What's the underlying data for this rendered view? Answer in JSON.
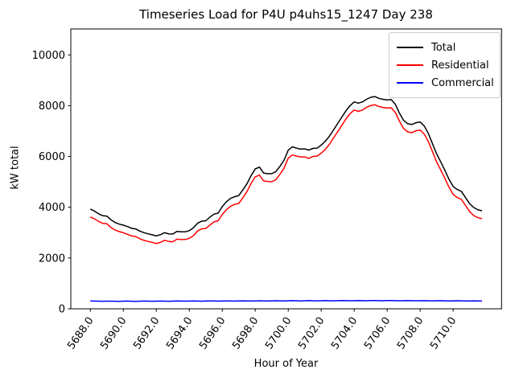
{
  "chart_data": {
    "type": "line",
    "title": "Timeseries Load for P4U p4uhs15_1247  Day 238",
    "xlabel": "Hour of Year",
    "ylabel": "kW total",
    "xlim": [
      5686.8125,
      5712.9375
    ],
    "ylim": [
      0,
      11023
    ],
    "grid": false,
    "legend_position": "upper right",
    "xticks": {
      "values": [
        5688,
        5690,
        5692,
        5694,
        5696,
        5698,
        5700,
        5702,
        5704,
        5706,
        5708,
        5710
      ],
      "labels": [
        "5688.0",
        "5690.0",
        "5692.0",
        "5694.0",
        "5696.0",
        "5698.0",
        "5700.0",
        "5702.0",
        "5704.0",
        "5706.0",
        "5708.0",
        "5710.0"
      ],
      "rotation_deg": 55
    },
    "yticks": {
      "values": [
        0,
        2000,
        4000,
        6000,
        8000,
        10000
      ],
      "labels": [
        "0",
        "2000",
        "4000",
        "6000",
        "8000",
        "10000"
      ]
    },
    "x": [
      5688.0,
      5688.25,
      5688.5,
      5688.75,
      5689.0,
      5689.25,
      5689.5,
      5689.75,
      5690.0,
      5690.25,
      5690.5,
      5690.75,
      5691.0,
      5691.25,
      5691.5,
      5691.75,
      5692.0,
      5692.25,
      5692.5,
      5692.75,
      5693.0,
      5693.25,
      5693.5,
      5693.75,
      5694.0,
      5694.25,
      5694.5,
      5694.75,
      5695.0,
      5695.25,
      5695.5,
      5695.75,
      5696.0,
      5696.25,
      5696.5,
      5696.75,
      5697.0,
      5697.25,
      5697.5,
      5697.75,
      5698.0,
      5698.25,
      5698.5,
      5698.75,
      5699.0,
      5699.25,
      5699.5,
      5699.75,
      5700.0,
      5700.25,
      5700.5,
      5700.75,
      5701.0,
      5701.25,
      5701.5,
      5701.75,
      5702.0,
      5702.25,
      5702.5,
      5702.75,
      5703.0,
      5703.25,
      5703.5,
      5703.75,
      5704.0,
      5704.25,
      5704.5,
      5704.75,
      5705.0,
      5705.25,
      5705.5,
      5705.75,
      5706.0,
      5706.25,
      5706.5,
      5706.75,
      5707.0,
      5707.25,
      5707.5,
      5707.75,
      5708.0,
      5708.25,
      5708.5,
      5708.75,
      5709.0,
      5709.25,
      5709.5,
      5709.75,
      5710.0,
      5710.25,
      5710.5,
      5710.75,
      5711.0,
      5711.25,
      5711.5,
      5711.75
    ],
    "series": [
      {
        "name": "Total",
        "color": "#000000",
        "values": [
          3930,
          3845,
          3740,
          3665,
          3650,
          3505,
          3400,
          3335,
          3295,
          3240,
          3170,
          3145,
          3060,
          3000,
          2955,
          2915,
          2870,
          2920,
          3000,
          2950,
          2945,
          3050,
          3030,
          3030,
          3080,
          3190,
          3370,
          3450,
          3470,
          3610,
          3730,
          3770,
          4030,
          4215,
          4350,
          4415,
          4460,
          4690,
          4930,
          5250,
          5510,
          5580,
          5350,
          5320,
          5320,
          5405,
          5615,
          5860,
          6250,
          6380,
          6330,
          6290,
          6300,
          6250,
          6320,
          6330,
          6450,
          6600,
          6800,
          7050,
          7300,
          7550,
          7800,
          8000,
          8150,
          8100,
          8150,
          8250,
          8330,
          8360,
          8290,
          8250,
          8230,
          8240,
          8050,
          7700,
          7420,
          7290,
          7260,
          7330,
          7360,
          7200,
          6900,
          6500,
          6100,
          5790,
          5450,
          5100,
          4820,
          4700,
          4620,
          4380,
          4140,
          3990,
          3900,
          3860
        ]
      },
      {
        "name": "Residential",
        "color": "#ff0000",
        "values": [
          3620,
          3540,
          3440,
          3367,
          3350,
          3203,
          3102,
          3040,
          2995,
          2937,
          2871,
          2849,
          2760,
          2695,
          2653,
          2617,
          2570,
          2616,
          2700,
          2653,
          2643,
          2744,
          2727,
          2730,
          2775,
          2882,
          3066,
          3150,
          3164,
          3300,
          3424,
          3468,
          3722,
          3903,
          4042,
          4110,
          4150,
          4376,
          4620,
          4943,
          5198,
          5264,
          5038,
          5012,
          5006,
          5087,
          5301,
          5550,
          5934,
          6060,
          6014,
          5978,
          5982,
          5928,
          6002,
          6016,
          6132,
          6278,
          6482,
          6735,
          6980,
          7226,
          7480,
          7684,
          7830,
          7776,
          7830,
          7933,
          8008,
          8035,
          7969,
          7932,
          7908,
          7915,
          7729,
          7382,
          7100,
          6967,
          6941,
          7014,
          7042,
          6879,
          6583,
          6186,
          5784,
          5471,
          5135,
          4788,
          4506,
          4383,
          4307,
          4070,
          3828,
          3675,
          3589,
          3552
        ]
      },
      {
        "name": "Commercial",
        "color": "#0000ff",
        "values": [
          310,
          305,
          300,
          298,
          300,
          302,
          298,
          295,
          300,
          303,
          299,
          296,
          300,
          305,
          302,
          298,
          300,
          304,
          300,
          297,
          302,
          306,
          303,
          300,
          305,
          308,
          304,
          300,
          306,
          310,
          306,
          302,
          308,
          312,
          308,
          305,
          310,
          314,
          310,
          307,
          312,
          316,
          312,
          308,
          314,
          318,
          314,
          310,
          316,
          320,
          316,
          312,
          318,
          322,
          318,
          314,
          318,
          322,
          318,
          315,
          320,
          324,
          320,
          316,
          320,
          324,
          320,
          317,
          322,
          325,
          321,
          318,
          322,
          325,
          321,
          318,
          320,
          323,
          319,
          316,
          318,
          321,
          317,
          314,
          316,
          319,
          315,
          312,
          314,
          317,
          313,
          310,
          312,
          315,
          311,
          308
        ]
      }
    ]
  }
}
